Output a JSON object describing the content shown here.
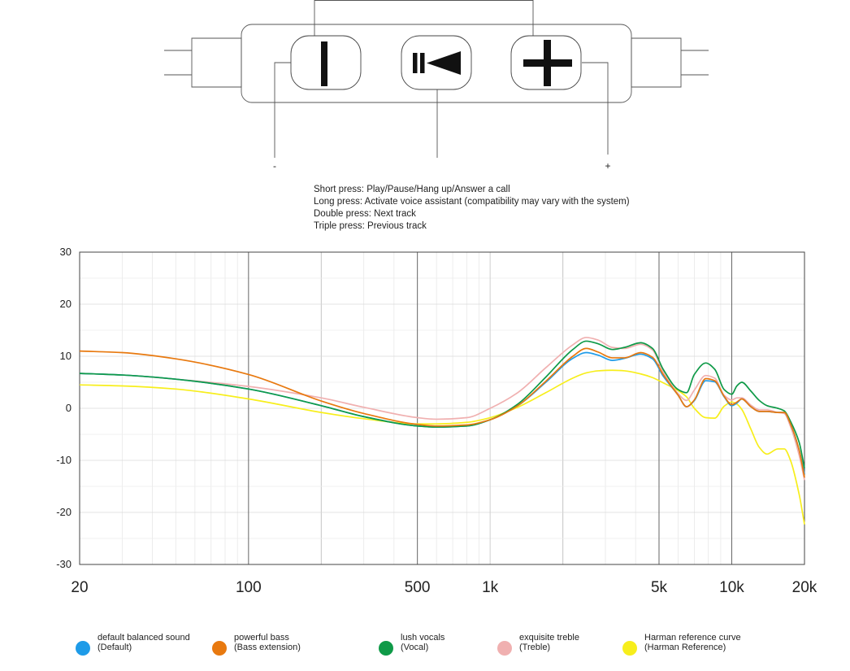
{
  "remote": {
    "buttons": [
      {
        "name": "volume-down-button",
        "icon": "minus-bar-icon"
      },
      {
        "name": "play-pause-button",
        "icon": "play-pause-icon"
      },
      {
        "name": "volume-up-button",
        "icon": "plus-icon"
      }
    ],
    "minus_label": "-",
    "plus_label": "+"
  },
  "instructions": [
    "Short press: Play/Pause/Hang up/Answer a call",
    "Long press: Activate voice assistant (compatibility may vary with the system)",
    "Double press: Next track",
    "Triple press: Previous track"
  ],
  "chart_data": {
    "type": "line",
    "title": "",
    "xlabel": "",
    "ylabel": "",
    "x_scale": "log",
    "xlim": [
      20,
      20000
    ],
    "ylim": [
      -30,
      30
    ],
    "x_ticks": [
      {
        "value": 20,
        "label": "20"
      },
      {
        "value": 100,
        "label": "100"
      },
      {
        "value": 500,
        "label": "500"
      },
      {
        "value": 1000,
        "label": "1k"
      },
      {
        "value": 5000,
        "label": "5k"
      },
      {
        "value": 10000,
        "label": "10k"
      },
      {
        "value": 20000,
        "label": "20k"
      }
    ],
    "y_ticks": [
      {
        "value": 30,
        "label": "30"
      },
      {
        "value": 20,
        "label": "20"
      },
      {
        "value": 10,
        "label": "10"
      },
      {
        "value": 0,
        "label": "0"
      },
      {
        "value": -10,
        "label": "-10"
      },
      {
        "value": -20,
        "label": "-20"
      },
      {
        "value": -30,
        "label": "-30"
      }
    ],
    "grid": true,
    "legend_position": "bottom",
    "series": [
      {
        "name": "default balanced sound",
        "sub": "(Default)",
        "color": "#1e9be8",
        "points": [
          [
            20,
            6.7
          ],
          [
            30,
            6.4
          ],
          [
            50,
            5.6
          ],
          [
            100,
            3.7
          ],
          [
            200,
            0.5
          ],
          [
            300,
            -1.6
          ],
          [
            500,
            -3.4
          ],
          [
            600,
            -3.6
          ],
          [
            800,
            -3.4
          ],
          [
            1000,
            -2.2
          ],
          [
            1300,
            0.5
          ],
          [
            1700,
            5
          ],
          [
            2200,
            9.6
          ],
          [
            2500,
            10.7
          ],
          [
            2800,
            10.2
          ],
          [
            3200,
            9.2
          ],
          [
            3600,
            9.6
          ],
          [
            4200,
            10.4
          ],
          [
            4700,
            9.5
          ],
          [
            5200,
            6.2
          ],
          [
            6000,
            2.5
          ],
          [
            6500,
            0.3
          ],
          [
            7000,
            1.5
          ],
          [
            7800,
            5.3
          ],
          [
            8500,
            5.1
          ],
          [
            9300,
            2.2
          ],
          [
            10000,
            0.5
          ],
          [
            10500,
            1
          ],
          [
            11000,
            1.8
          ],
          [
            12000,
            0.3
          ],
          [
            13000,
            -0.6
          ],
          [
            14000,
            -0.6
          ],
          [
            15500,
            -0.8
          ],
          [
            16500,
            -0.8
          ],
          [
            17500,
            -3
          ],
          [
            19000,
            -8
          ],
          [
            20000,
            -12.6
          ]
        ]
      },
      {
        "name": "powerful bass",
        "sub": "(Bass extension)",
        "color": "#e8790f",
        "points": [
          [
            20,
            11
          ],
          [
            30,
            10.7
          ],
          [
            50,
            9.5
          ],
          [
            100,
            6.5
          ],
          [
            200,
            1.4
          ],
          [
            300,
            -1
          ],
          [
            500,
            -3.1
          ],
          [
            600,
            -3.4
          ],
          [
            800,
            -3.2
          ],
          [
            1000,
            -2.2
          ],
          [
            1300,
            0.5
          ],
          [
            1700,
            5.2
          ],
          [
            2200,
            10
          ],
          [
            2500,
            11.5
          ],
          [
            2800,
            10.8
          ],
          [
            3200,
            9.7
          ],
          [
            3600,
            9.7
          ],
          [
            4200,
            10.7
          ],
          [
            4700,
            9.8
          ],
          [
            5200,
            6.5
          ],
          [
            6000,
            2.5
          ],
          [
            6500,
            0.3
          ],
          [
            7000,
            1.6
          ],
          [
            7800,
            5.7
          ],
          [
            8500,
            5.3
          ],
          [
            9300,
            2.3
          ],
          [
            10000,
            0.7
          ],
          [
            10500,
            1.2
          ],
          [
            11000,
            1.8
          ],
          [
            12000,
            0.3
          ],
          [
            13000,
            -0.6
          ],
          [
            14000,
            -0.6
          ],
          [
            15500,
            -0.8
          ],
          [
            16500,
            -0.8
          ],
          [
            17500,
            -3
          ],
          [
            19000,
            -8
          ],
          [
            20000,
            -13.3
          ]
        ]
      },
      {
        "name": "lush vocals",
        "sub": "(Vocal)",
        "color": "#0f9a48",
        "points": [
          [
            20,
            6.7
          ],
          [
            30,
            6.4
          ],
          [
            50,
            5.6
          ],
          [
            100,
            3.7
          ],
          [
            200,
            0.5
          ],
          [
            300,
            -1.6
          ],
          [
            500,
            -3.4
          ],
          [
            600,
            -3.6
          ],
          [
            800,
            -3.4
          ],
          [
            1000,
            -2.2
          ],
          [
            1300,
            0.8
          ],
          [
            1700,
            6
          ],
          [
            2200,
            11.3
          ],
          [
            2500,
            12.9
          ],
          [
            2800,
            12.4
          ],
          [
            3200,
            11.3
          ],
          [
            3600,
            11.7
          ],
          [
            4200,
            12.6
          ],
          [
            4700,
            11.5
          ],
          [
            5200,
            7.5
          ],
          [
            6000,
            3.6
          ],
          [
            6500,
            3
          ],
          [
            7000,
            6.5
          ],
          [
            7800,
            8.7
          ],
          [
            8500,
            7.5
          ],
          [
            9300,
            3.6
          ],
          [
            10000,
            2.7
          ],
          [
            10500,
            4.3
          ],
          [
            11000,
            5
          ],
          [
            12000,
            3.3
          ],
          [
            13000,
            1.5
          ],
          [
            14000,
            0.5
          ],
          [
            15500,
            0
          ],
          [
            16500,
            -0.5
          ],
          [
            17500,
            -2.5
          ],
          [
            19000,
            -6.5
          ],
          [
            20000,
            -11.5
          ]
        ]
      },
      {
        "name": "exquisite treble",
        "sub": "(Treble)",
        "color": "#f0b0b0",
        "points": [
          [
            20,
            6.7
          ],
          [
            30,
            6.4
          ],
          [
            50,
            5.6
          ],
          [
            100,
            4.2
          ],
          [
            200,
            2
          ],
          [
            300,
            0.2
          ],
          [
            500,
            -1.8
          ],
          [
            600,
            -2.1
          ],
          [
            800,
            -1.8
          ],
          [
            1000,
            0
          ],
          [
            1300,
            3
          ],
          [
            1700,
            7.8
          ],
          [
            2200,
            12.2
          ],
          [
            2500,
            13.6
          ],
          [
            2800,
            13.1
          ],
          [
            3200,
            11.7
          ],
          [
            3600,
            11.5
          ],
          [
            4200,
            12.3
          ],
          [
            4700,
            11.2
          ],
          [
            5200,
            7
          ],
          [
            6000,
            2.8
          ],
          [
            6500,
            1.5
          ],
          [
            7000,
            3.5
          ],
          [
            7800,
            6.3
          ],
          [
            8500,
            5.8
          ],
          [
            9300,
            2.5
          ],
          [
            10000,
            1.6
          ],
          [
            10500,
            2
          ],
          [
            11000,
            2
          ],
          [
            12000,
            0.6
          ],
          [
            13000,
            -0.3
          ],
          [
            14000,
            -0.3
          ],
          [
            15500,
            -0.8
          ],
          [
            16500,
            -1
          ],
          [
            17500,
            -3.5
          ],
          [
            19000,
            -9
          ],
          [
            20000,
            -13.8
          ]
        ]
      },
      {
        "name": "Harman reference curve",
        "sub": "(Harman Reference)",
        "color": "#f7ee1c",
        "points": [
          [
            20,
            4.5
          ],
          [
            30,
            4.3
          ],
          [
            50,
            3.7
          ],
          [
            100,
            1.8
          ],
          [
            200,
            -0.8
          ],
          [
            300,
            -2
          ],
          [
            500,
            -3
          ],
          [
            600,
            -3
          ],
          [
            800,
            -2.7
          ],
          [
            1000,
            -1.8
          ],
          [
            1300,
            0.2
          ],
          [
            1700,
            3
          ],
          [
            2200,
            5.8
          ],
          [
            2500,
            6.8
          ],
          [
            2800,
            7.2
          ],
          [
            3200,
            7.3
          ],
          [
            3600,
            7.2
          ],
          [
            4200,
            6.6
          ],
          [
            4700,
            5.9
          ],
          [
            5200,
            4.9
          ],
          [
            6000,
            3.4
          ],
          [
            6500,
            2.2
          ],
          [
            7000,
            0
          ],
          [
            7800,
            -1.8
          ],
          [
            8500,
            -1.9
          ],
          [
            9300,
            0.4
          ],
          [
            10000,
            1.2
          ],
          [
            10500,
            0.8
          ],
          [
            11000,
            -0.2
          ],
          [
            12000,
            -4
          ],
          [
            13000,
            -7.5
          ],
          [
            14000,
            -8.8
          ],
          [
            15500,
            -7.8
          ],
          [
            16500,
            -7.8
          ],
          [
            17500,
            -10
          ],
          [
            19000,
            -16.5
          ],
          [
            20000,
            -22.3
          ]
        ]
      }
    ]
  }
}
